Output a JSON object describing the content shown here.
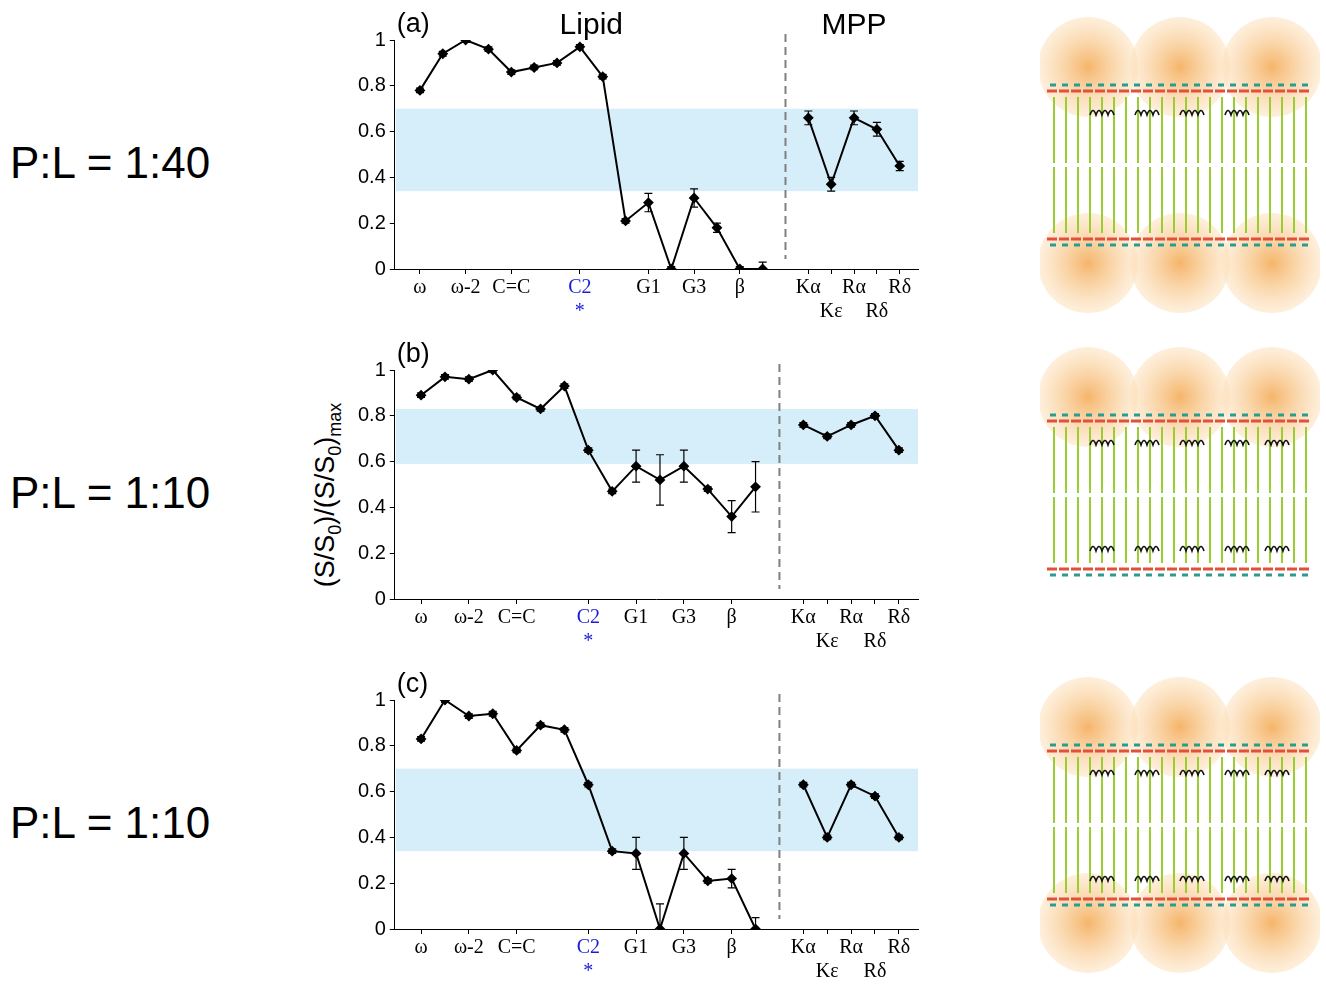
{
  "y_label": "(S/S0)/(S/S0)max",
  "chart_data": [
    {
      "type": "line",
      "panel": "(a)",
      "row_label": "P:L = 1:40",
      "ylim": [
        0,
        1
      ],
      "yticks": [
        0,
        0.2,
        0.4,
        0.6,
        0.8,
        1
      ],
      "grid": false,
      "color": "#000000",
      "marker": "diamond",
      "band": {
        "range": [
          0.34,
          0.7
        ],
        "color": "#d6eefa"
      },
      "annotations": [
        {
          "text": "*",
          "at": "C2",
          "color": "#1a1adb"
        }
      ],
      "groups": [
        {
          "title": "Lipid",
          "categories": [
            "ω",
            null,
            "ω-2",
            null,
            "C=C",
            null,
            null,
            "C2",
            null,
            null,
            "G1",
            null,
            "G3",
            null,
            "β",
            null
          ],
          "values": [
            0.78,
            0.94,
            1.0,
            0.96,
            0.86,
            0.88,
            0.9,
            0.97,
            0.84,
            0.21,
            0.29,
            0.0,
            0.31,
            0.18,
            0.0,
            0.0
          ],
          "errors": [
            0.01,
            0.01,
            0.01,
            0.01,
            0.01,
            0.01,
            0.01,
            0.01,
            0.01,
            0.01,
            0.04,
            0.01,
            0.04,
            0.02,
            0.01,
            0.03
          ]
        },
        {
          "title": "MPP",
          "categories": [
            "Kα",
            "Kε",
            "Rα",
            "Rδ",
            "Rδ"
          ],
          "values": [
            0.66,
            0.37,
            0.66,
            0.61,
            0.45
          ],
          "errors": [
            0.03,
            0.03,
            0.03,
            0.03,
            0.02
          ]
        }
      ]
    },
    {
      "type": "line",
      "panel": "(b)",
      "row_label": "P:L = 1:10",
      "ylim": [
        0,
        1
      ],
      "yticks": [
        0,
        0.2,
        0.4,
        0.6,
        0.8,
        1
      ],
      "grid": false,
      "color": "#000000",
      "marker": "diamond",
      "band": {
        "range": [
          0.59,
          0.83
        ],
        "color": "#d6eefa"
      },
      "annotations": [
        {
          "text": "*",
          "at": "C2",
          "color": "#1a1adb"
        }
      ],
      "groups": [
        {
          "categories": [
            "ω",
            null,
            "ω-2",
            null,
            "C=C",
            null,
            null,
            "C2",
            null,
            "G1",
            null,
            "G3",
            null,
            "β",
            null
          ],
          "values": [
            0.89,
            0.97,
            0.96,
            1.0,
            0.88,
            0.83,
            0.93,
            0.65,
            0.47,
            0.58,
            0.52,
            0.58,
            0.48,
            0.36,
            0.49
          ],
          "errors": [
            0.01,
            0.01,
            0.01,
            0.01,
            0.01,
            0.01,
            0.01,
            0.01,
            0.01,
            0.07,
            0.11,
            0.07,
            0.01,
            0.07,
            0.11
          ]
        },
        {
          "categories": [
            "Kα",
            "Kε",
            "Rα",
            "Rδ",
            "Rδ"
          ],
          "values": [
            0.76,
            0.71,
            0.76,
            0.8,
            0.65
          ],
          "errors": [
            0.01,
            0.01,
            0.01,
            0.01,
            0.01
          ]
        }
      ]
    },
    {
      "type": "line",
      "panel": "(c)",
      "row_label": "P:L = 1:10",
      "ylim": [
        0,
        1
      ],
      "yticks": [
        0,
        0.2,
        0.4,
        0.6,
        0.8,
        1
      ],
      "grid": false,
      "color": "#000000",
      "marker": "diamond",
      "band": {
        "range": [
          0.34,
          0.7
        ],
        "color": "#d6eefa"
      },
      "annotations": [
        {
          "text": "*",
          "at": "C2",
          "color": "#1a1adb"
        }
      ],
      "groups": [
        {
          "categories": [
            "ω",
            null,
            "ω-2",
            null,
            "C=C",
            null,
            null,
            "C2",
            null,
            "G1",
            null,
            "G3",
            null,
            "β",
            null
          ],
          "values": [
            0.83,
            1.0,
            0.93,
            0.94,
            0.78,
            0.89,
            0.87,
            0.63,
            0.34,
            0.33,
            0.0,
            0.33,
            0.21,
            0.22,
            0.0
          ],
          "errors": [
            0.01,
            0.01,
            0.01,
            0.01,
            0.01,
            0.01,
            0.01,
            0.01,
            0.01,
            0.07,
            0.11,
            0.07,
            0.01,
            0.04,
            0.05
          ]
        },
        {
          "categories": [
            "Kα",
            "Kε",
            "Rα",
            "Rδ",
            "Rδ"
          ],
          "values": [
            0.63,
            0.4,
            0.63,
            0.58,
            0.4
          ],
          "errors": [
            0.01,
            0.01,
            0.01,
            0.01,
            0.01
          ]
        }
      ]
    }
  ]
}
